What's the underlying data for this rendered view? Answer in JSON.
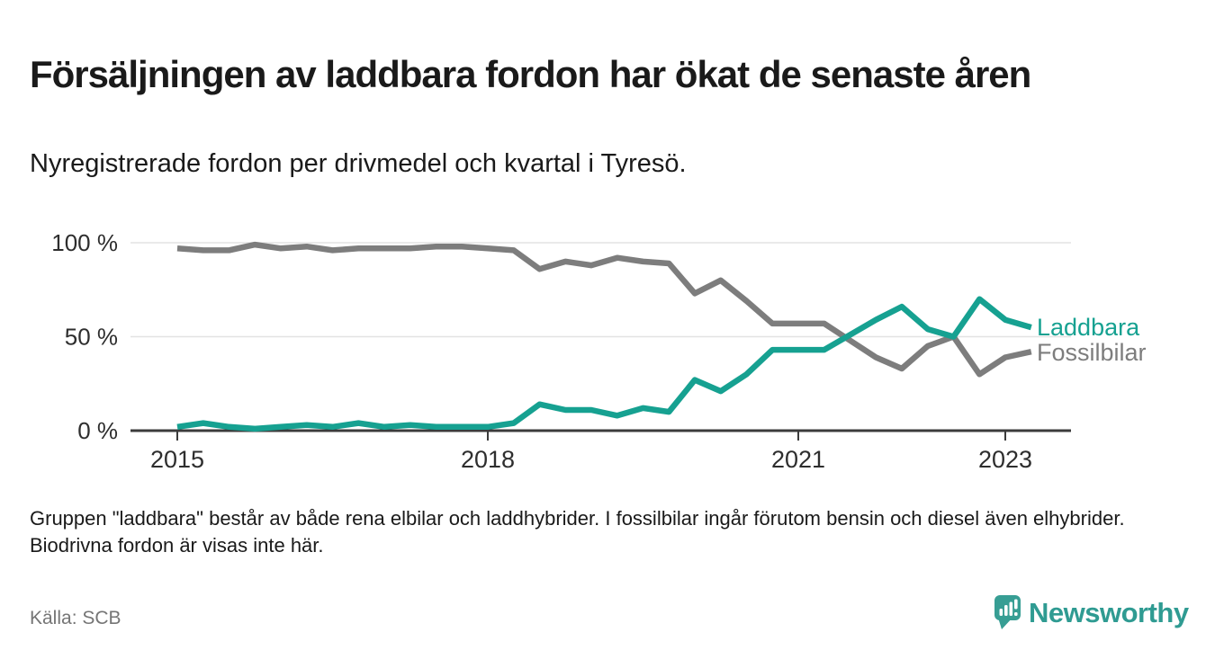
{
  "header": {
    "title": "Försäljningen av laddbara fordon har ökat de senaste åren",
    "subtitle": "Nyregistrerade fordon per drivmedel och kvartal i Tyresö."
  },
  "chart_data": {
    "type": "line",
    "title": "Nyregistrerade fordon per drivmedel och kvartal i Tyresö",
    "x_unit": "quarter",
    "ylim": [
      0,
      100
    ],
    "y_unit": "%",
    "grid": "horizontal",
    "legend_position": "right-of-line-ends",
    "y_ticks": [
      {
        "label": "0 %",
        "value": 0
      },
      {
        "label": "50 %",
        "value": 50
      },
      {
        "label": "100 %",
        "value": 100
      }
    ],
    "x_ticks": [
      {
        "label": "2015",
        "quarter_index": 0
      },
      {
        "label": "2018",
        "quarter_index": 12
      },
      {
        "label": "2021",
        "quarter_index": 24
      },
      {
        "label": "2023",
        "quarter_index": 32
      }
    ],
    "x": [
      "2015 Q1",
      "2015 Q2",
      "2015 Q3",
      "2015 Q4",
      "2016 Q1",
      "2016 Q2",
      "2016 Q3",
      "2016 Q4",
      "2017 Q1",
      "2017 Q2",
      "2017 Q3",
      "2017 Q4",
      "2018 Q1",
      "2018 Q2",
      "2018 Q3",
      "2018 Q4",
      "2019 Q1",
      "2019 Q2",
      "2019 Q3",
      "2019 Q4",
      "2020 Q1",
      "2020 Q2",
      "2020 Q3",
      "2020 Q4",
      "2021 Q1",
      "2021 Q2",
      "2021 Q3",
      "2021 Q4",
      "2022 Q1",
      "2022 Q2",
      "2022 Q3",
      "2022 Q4",
      "2023 Q1",
      "2023 Q2"
    ],
    "series": [
      {
        "name": "Laddbara",
        "color": "#16a191",
        "values": [
          2,
          4,
          2,
          1,
          2,
          3,
          2,
          4,
          2,
          3,
          2,
          2,
          2,
          4,
          14,
          11,
          11,
          8,
          12,
          10,
          27,
          21,
          30,
          43,
          43,
          43,
          51,
          59,
          66,
          54,
          50,
          70,
          59,
          55
        ]
      },
      {
        "name": "Fossilbilar",
        "color": "#7d7d7d",
        "values": [
          97,
          96,
          96,
          99,
          97,
          98,
          96,
          97,
          97,
          97,
          98,
          98,
          97,
          96,
          86,
          90,
          88,
          92,
          90,
          89,
          73,
          80,
          69,
          57,
          57,
          57,
          48,
          39,
          33,
          45,
          50,
          30,
          39,
          42
        ]
      }
    ]
  },
  "footnote": "Gruppen \"laddbara\" består av både rena elbilar och laddhybrider. I fossilbilar ingår förutom bensin och diesel även elhybrider. Biodrivna fordon är visas inte här.",
  "source": "Källa: SCB",
  "branding": {
    "logo_text": "Newsworthy",
    "logo_color": "#379e94"
  }
}
